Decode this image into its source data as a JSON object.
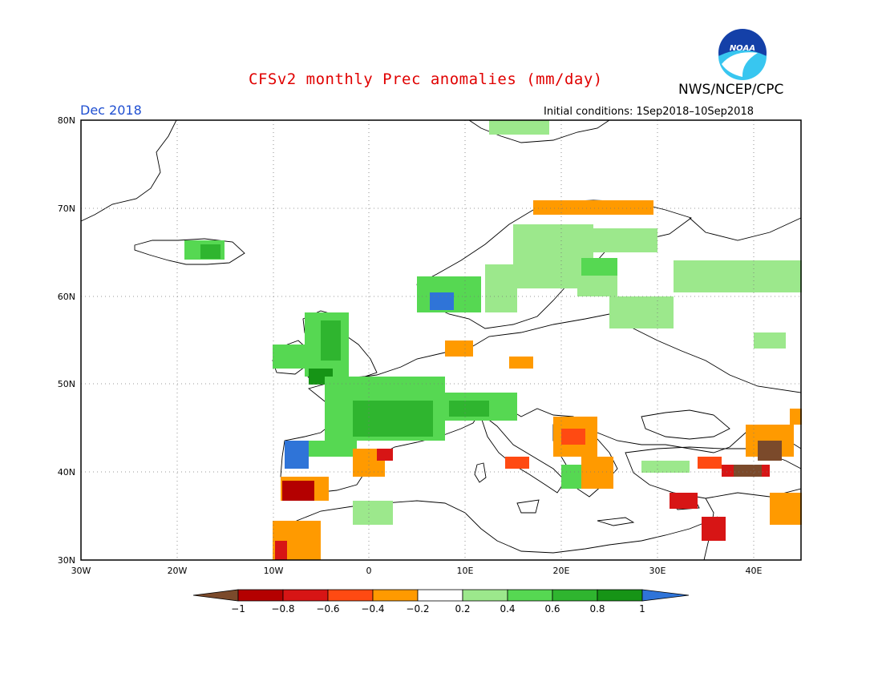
{
  "title": "CFSv2 monthly Prec anomalies (mm/day)",
  "agency": "NWS/NCEP/CPC",
  "logo_text": "NOAA",
  "period": "Dec 2018",
  "initial_conditions": "Initial conditions: 1Sep2018–10Sep2018",
  "lat_labels": [
    "80N",
    "70N",
    "60N",
    "50N",
    "40N",
    "30N"
  ],
  "lon_labels": [
    "30W",
    "20W",
    "10W",
    "0",
    "10E",
    "20E",
    "30E",
    "40E"
  ],
  "colorbar": {
    "tick_labels": [
      "−1",
      "−0.8",
      "−0.6",
      "−0.4",
      "−0.2",
      "0.2",
      "0.4",
      "0.6",
      "0.8",
      "1"
    ],
    "colors": [
      "#7b4a2b",
      "#b40000",
      "#d71515",
      "#ff4a12",
      "#ff9a00",
      "#ffffff",
      "#9ce88c",
      "#56d852",
      "#2fb52f",
      "#169416",
      "#2f74d8"
    ]
  }
}
